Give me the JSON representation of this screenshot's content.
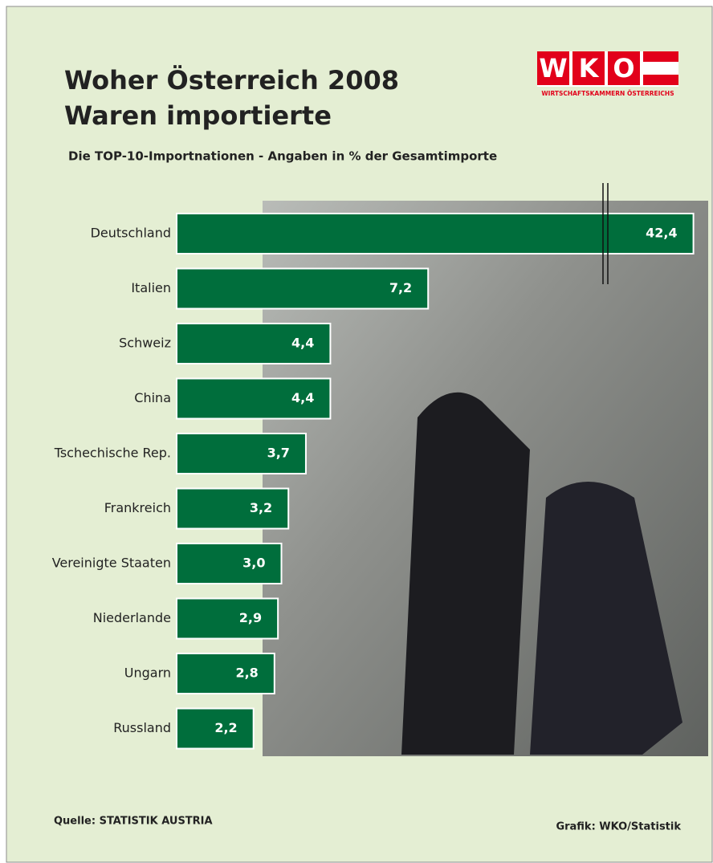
{
  "chart_data": {
    "type": "hbar",
    "title": [
      "Woher Österreich 2008",
      "Waren importierte"
    ],
    "subtitle": "Die TOP-10-Importnationen - Angaben in % der Gesamtimporte",
    "categories": [
      "Deutschland",
      "Italien",
      "Schweiz",
      "China",
      "Tschechische Rep.",
      "Frankreich",
      "Vereinigte Staaten",
      "Niederlande",
      "Ungarn",
      "Russland"
    ],
    "values": [
      42.4,
      7.2,
      4.4,
      4.4,
      3.7,
      3.2,
      3.0,
      2.9,
      2.8,
      2.2
    ],
    "value_labels": [
      "42,4",
      "7,2",
      "4,4",
      "4,4",
      "3,7",
      "3,2",
      "3,0",
      "2,9",
      "2,8",
      "2,2"
    ],
    "color": "#006e3c",
    "source": "Quelle: STATISTIK AUSTRIA",
    "credit": "Grafik: WKO/Statistik",
    "logo": {
      "letters": [
        "W",
        "K",
        "O"
      ],
      "caption": "WIRTSCHAFTSKAMMERN ÖSTERREICHS"
    }
  }
}
